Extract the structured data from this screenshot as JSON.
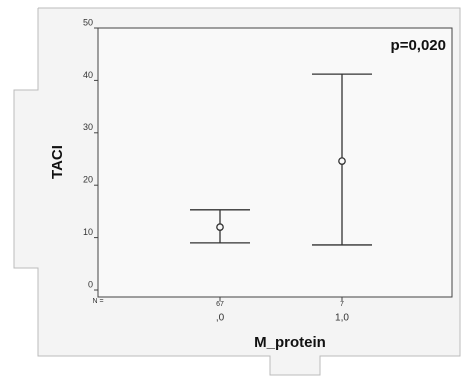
{
  "chart_data": {
    "type": "errorbar",
    "categories": [
      ",0",
      "1,0"
    ],
    "values": [
      12,
      24.6
    ],
    "lower": [
      9,
      8.6
    ],
    "upper": [
      15.3,
      41.2
    ],
    "n_label": "N =",
    "n": [
      67,
      7
    ],
    "xlabel": "M_protein",
    "ylabel": "TACI",
    "annotation": "p=0,020",
    "ylim": [
      0,
      50
    ],
    "yticks": [
      0,
      10,
      20,
      30,
      40,
      50
    ],
    "color": "#333333"
  }
}
